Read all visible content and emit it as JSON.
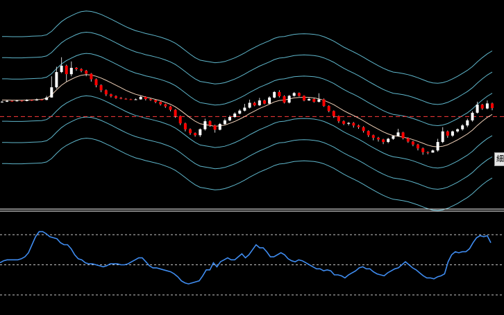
{
  "chart_data": [
    {
      "type": "candlestick",
      "overlays": [
        "moving-average",
        "bollinger-bands-1",
        "bollinger-bands-2",
        "bollinger-bands-3",
        "horizontal-reference-line"
      ],
      "candles": [
        [
          0.5,
          0.5,
          0.54,
          0.46
        ],
        [
          0.5,
          0.542,
          0.58,
          0.485
        ],
        [
          0.542,
          0.522,
          0.565,
          0.498
        ],
        [
          0.522,
          0.555,
          0.595,
          0.51
        ],
        [
          0.555,
          0.532,
          0.59,
          0.5
        ],
        [
          0.532,
          0.582,
          0.62,
          0.52
        ],
        [
          0.582,
          0.56,
          0.61,
          0.53
        ],
        [
          0.56,
          0.602,
          0.65,
          0.55
        ],
        [
          0.602,
          0.585,
          0.64,
          0.56
        ],
        [
          0.585,
          0.7,
          0.78,
          0.57
        ],
        [
          0.7,
          1.18,
          1.7,
          0.69
        ],
        [
          1.18,
          1.9,
          2.15,
          1.12
        ],
        [
          1.9,
          2.2,
          2.6,
          1.85
        ],
        [
          2.2,
          1.8,
          2.25,
          1.45
        ],
        [
          1.8,
          2.1,
          2.4,
          1.7
        ],
        [
          2.1,
          2.04,
          2.13,
          1.96
        ],
        [
          2.04,
          1.96,
          2.08,
          1.89
        ],
        [
          1.96,
          1.82,
          2.0,
          1.7
        ],
        [
          1.82,
          1.56,
          1.85,
          1.45
        ],
        [
          1.56,
          1.28,
          1.6,
          1.18
        ],
        [
          1.28,
          1.04,
          1.32,
          0.95
        ],
        [
          1.04,
          0.85,
          1.08,
          0.77
        ],
        [
          0.85,
          0.76,
          0.88,
          0.7
        ],
        [
          0.76,
          0.68,
          0.8,
          0.64
        ],
        [
          0.68,
          0.64,
          0.72,
          0.62
        ],
        [
          0.64,
          0.615,
          0.67,
          0.6
        ],
        [
          0.615,
          0.6,
          0.64,
          0.585
        ],
        [
          0.6,
          0.612,
          0.65,
          0.59
        ],
        [
          0.612,
          0.73,
          0.79,
          0.6
        ],
        [
          0.73,
          0.625,
          0.76,
          0.56
        ],
        [
          0.625,
          0.575,
          0.65,
          0.54
        ],
        [
          0.575,
          0.49,
          0.6,
          0.43
        ],
        [
          0.49,
          0.38,
          0.52,
          0.32
        ],
        [
          0.38,
          0.28,
          0.41,
          0.21
        ],
        [
          0.28,
          0.12,
          0.31,
          0.05
        ],
        [
          0.12,
          -0.18,
          0.15,
          -0.26
        ],
        [
          -0.18,
          -0.52,
          -0.15,
          -0.6
        ],
        [
          -0.52,
          -0.8,
          -0.49,
          -0.9
        ],
        [
          -0.8,
          -0.98,
          -0.76,
          -1.06
        ],
        [
          -0.98,
          -1.08,
          -0.95,
          -1.15
        ],
        [
          -1.08,
          -0.8,
          -0.76,
          -1.16
        ],
        [
          -0.8,
          -0.42,
          -0.3,
          -0.86
        ],
        [
          -0.42,
          -0.62,
          -0.38,
          -0.68
        ],
        [
          -0.62,
          -0.82,
          -0.58,
          -0.96
        ],
        [
          -0.82,
          -0.55,
          -0.5,
          -0.85
        ],
        [
          -0.55,
          -0.38,
          -0.3,
          -0.6
        ],
        [
          -0.38,
          -0.22,
          -0.15,
          -0.42
        ],
        [
          -0.22,
          -0.06,
          0.0,
          -0.26
        ],
        [
          -0.06,
          0.08,
          0.15,
          -0.1
        ],
        [
          0.08,
          0.22,
          0.4,
          0.04
        ],
        [
          0.22,
          0.45,
          0.6,
          0.18
        ],
        [
          0.45,
          0.33,
          0.5,
          0.29
        ],
        [
          0.33,
          0.56,
          0.68,
          0.3
        ],
        [
          0.56,
          0.41,
          0.6,
          0.38
        ],
        [
          0.41,
          0.7,
          0.76,
          0.38
        ],
        [
          0.7,
          0.96,
          1.0,
          0.66
        ],
        [
          0.96,
          0.76,
          1.04,
          0.7
        ],
        [
          0.76,
          0.46,
          0.8,
          0.42
        ],
        [
          0.46,
          0.78,
          0.82,
          0.42
        ],
        [
          0.78,
          0.91,
          0.96,
          0.74
        ],
        [
          0.91,
          0.78,
          0.94,
          0.74
        ],
        [
          0.78,
          0.56,
          0.8,
          0.52
        ],
        [
          0.56,
          0.63,
          0.7,
          0.54
        ],
        [
          0.63,
          0.5,
          0.66,
          0.46
        ],
        [
          0.5,
          0.61,
          0.9,
          0.46
        ],
        [
          0.61,
          0.3,
          0.65,
          0.26
        ],
        [
          0.3,
          0.06,
          0.33,
          0.0
        ],
        [
          0.06,
          -0.18,
          0.09,
          -0.26
        ],
        [
          -0.18,
          -0.42,
          -0.15,
          -0.5
        ],
        [
          -0.42,
          -0.54,
          -0.38,
          -0.6
        ],
        [
          -0.54,
          -0.5,
          -0.46,
          -0.62
        ],
        [
          -0.5,
          -0.62,
          -0.46,
          -0.72
        ],
        [
          -0.62,
          -0.7,
          -0.58,
          -0.78
        ],
        [
          -0.7,
          -0.88,
          -0.66,
          -0.96
        ],
        [
          -0.88,
          -1.08,
          -0.85,
          -1.16
        ],
        [
          -1.08,
          -1.2,
          -1.05,
          -1.32
        ],
        [
          -1.2,
          -1.28,
          -1.16,
          -1.38
        ],
        [
          -1.28,
          -1.4,
          -1.25,
          -1.5
        ],
        [
          -1.4,
          -1.25,
          -1.2,
          -1.46
        ],
        [
          -1.25,
          -1.12,
          -1.08,
          -1.3
        ],
        [
          -1.12,
          -0.95,
          -0.78,
          -1.15
        ],
        [
          -0.95,
          -1.22,
          -0.92,
          -1.28
        ],
        [
          -1.22,
          -1.38,
          -1.18,
          -1.44
        ],
        [
          -1.38,
          -1.52,
          -1.34,
          -1.6
        ],
        [
          -1.52,
          -1.7,
          -1.48,
          -1.8
        ],
        [
          -1.7,
          -1.88,
          -1.66,
          -2.0
        ],
        [
          -1.88,
          -1.9,
          -1.84,
          -1.98
        ],
        [
          -1.9,
          -1.8,
          -1.76,
          -1.9
        ],
        [
          -1.8,
          -1.4,
          -1.25,
          -1.86
        ],
        [
          -1.4,
          -0.9,
          -0.7,
          -1.46
        ],
        [
          -0.9,
          -1.1,
          -0.86,
          -1.2
        ],
        [
          -1.1,
          -0.9,
          -0.86,
          -1.16
        ],
        [
          -0.9,
          -0.8,
          -0.76,
          -0.96
        ],
        [
          -0.8,
          -0.62,
          -0.56,
          -0.86
        ],
        [
          -0.62,
          -0.38,
          -0.3,
          -0.7
        ],
        [
          -0.38,
          -0.02,
          0.05,
          -0.44
        ],
        [
          -0.02,
          0.36,
          0.5,
          -0.06
        ],
        [
          0.36,
          0.18,
          0.4,
          0.12
        ],
        [
          0.18,
          0.42,
          0.56,
          0.14
        ],
        [
          0.42,
          0.2,
          0.46,
          0.1
        ]
      ],
      "moving_average": [
        0.58,
        0.58,
        0.57,
        0.57,
        0.57,
        0.58,
        0.59,
        0.6,
        0.61,
        0.66,
        0.82,
        1.06,
        1.28,
        1.44,
        1.56,
        1.67,
        1.75,
        1.78,
        1.76,
        1.7,
        1.62,
        1.51,
        1.4,
        1.28,
        1.16,
        1.04,
        0.94,
        0.85,
        0.79,
        0.72,
        0.67,
        0.61,
        0.55,
        0.47,
        0.38,
        0.26,
        0.1,
        -0.08,
        -0.26,
        -0.42,
        -0.54,
        -0.58,
        -0.62,
        -0.66,
        -0.64,
        -0.6,
        -0.52,
        -0.43,
        -0.32,
        -0.2,
        -0.06,
        0.06,
        0.18,
        0.28,
        0.38,
        0.49,
        0.56,
        0.58,
        0.63,
        0.68,
        0.7,
        0.71,
        0.7,
        0.68,
        0.64,
        0.57,
        0.47,
        0.36,
        0.22,
        0.08,
        -0.04,
        -0.15,
        -0.27,
        -0.4,
        -0.54,
        -0.67,
        -0.8,
        -0.92,
        -1.02,
        -1.1,
        -1.13,
        -1.17,
        -1.22,
        -1.29,
        -1.37,
        -1.46,
        -1.55,
        -1.61,
        -1.63,
        -1.6,
        -1.53,
        -1.42,
        -1.3,
        -1.16,
        -1.02,
        -0.84,
        -0.62,
        -0.42,
        -0.24,
        -0.1
      ],
      "bollinger_band_half_width": 1.0,
      "y_range": [
        -4.5,
        5.3
      ],
      "reference_level": -0.2
    },
    {
      "type": "line",
      "series": [
        {
          "values": [
            52,
            54,
            55,
            55,
            55,
            55,
            56,
            58,
            62,
            70,
            78,
            83,
            83,
            81,
            78,
            77,
            76,
            72,
            70,
            70,
            66,
            60,
            56,
            55,
            52,
            51,
            51,
            50,
            49,
            48,
            49,
            51,
            51,
            51,
            50,
            50,
            51,
            53,
            55,
            57,
            57,
            53,
            49,
            47,
            47,
            46,
            45,
            44,
            43,
            41,
            38,
            34,
            32,
            31,
            32,
            33,
            34,
            39,
            45,
            45,
            52,
            48,
            53,
            55,
            57,
            55,
            55,
            58,
            61,
            57,
            60,
            65,
            70,
            67,
            67,
            63,
            58,
            58,
            60,
            62,
            60,
            56,
            54,
            53,
            55,
            54,
            52,
            50,
            48,
            46,
            46,
            44,
            45,
            44,
            40,
            40,
            39,
            37,
            40,
            42,
            44,
            47,
            48,
            46,
            46,
            43,
            41,
            40,
            39,
            42,
            44,
            46,
            47,
            50,
            53,
            50,
            47,
            45,
            42,
            39,
            37,
            37,
            36,
            38,
            39,
            41,
            53,
            60,
            63,
            62,
            63,
            63,
            66,
            72,
            77,
            79,
            78,
            79,
            72
          ]
        }
      ],
      "y_range": [
        0,
        100
      ],
      "reference_levels": [
        80,
        50,
        20
      ]
    }
  ],
  "colors": {
    "background": "#000000",
    "bull_candle": "#ffffff",
    "bear_candle": "#ff0000",
    "wick": "#d0d0d0",
    "bands": "#5fb7cc",
    "moving_average": "#f0d0b8",
    "reference_line": "#ff3b3b",
    "oscillator_line": "#3f8cf0",
    "dashed_levels": "#c8c8c8",
    "panel_divider": "#ffffff"
  },
  "price_tag": {
    "text": "細"
  }
}
